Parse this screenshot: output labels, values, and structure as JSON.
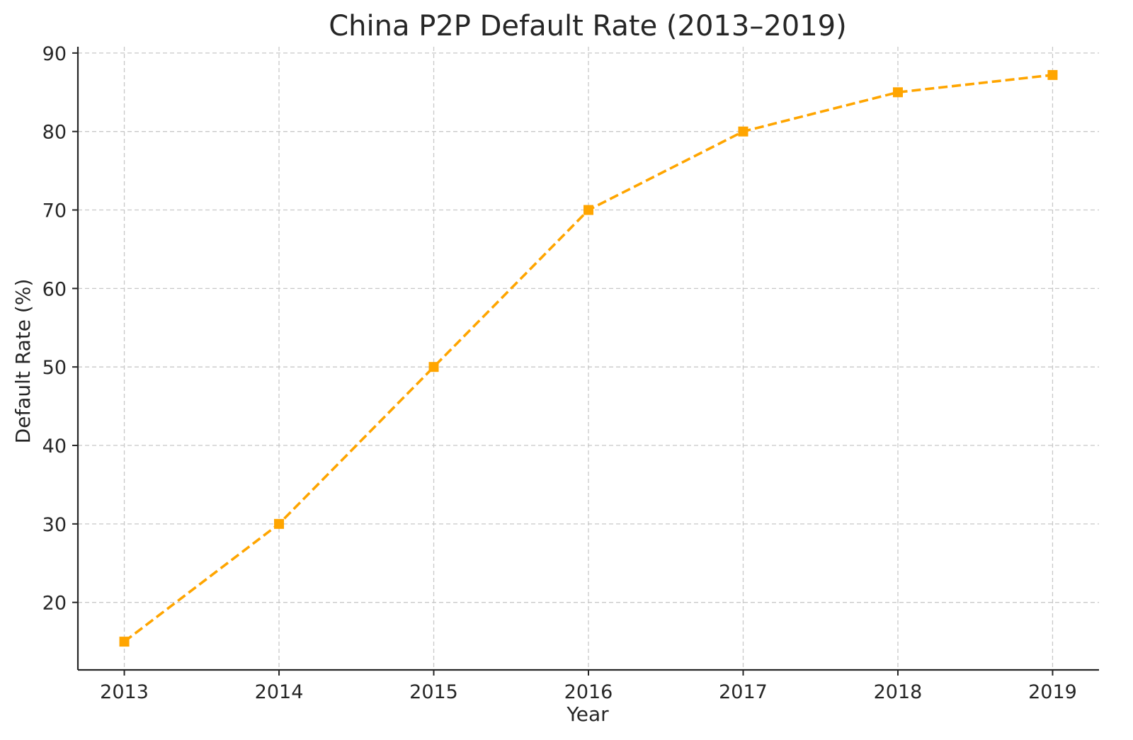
{
  "chart_data": {
    "type": "line",
    "title": "China P2P Default Rate (2013–2019)",
    "xlabel": "Year",
    "ylabel": "Default Rate (%)",
    "categories": [
      "2013",
      "2014",
      "2015",
      "2016",
      "2017",
      "2018",
      "2019"
    ],
    "x": [
      2013,
      2014,
      2015,
      2016,
      2017,
      2018,
      2019
    ],
    "series": [
      {
        "values": [
          15,
          30,
          50,
          70,
          80,
          85,
          87.2
        ],
        "color": "#ffa500",
        "marker": "square",
        "line_style": "dashed"
      }
    ],
    "yticks": [
      "20",
      "30",
      "40",
      "50",
      "60",
      "70",
      "80",
      "90"
    ],
    "ylim": [
      11.4,
      90.8
    ],
    "xlim": [
      2012.7,
      2019.3
    ],
    "grid": true,
    "legend": "none"
  }
}
